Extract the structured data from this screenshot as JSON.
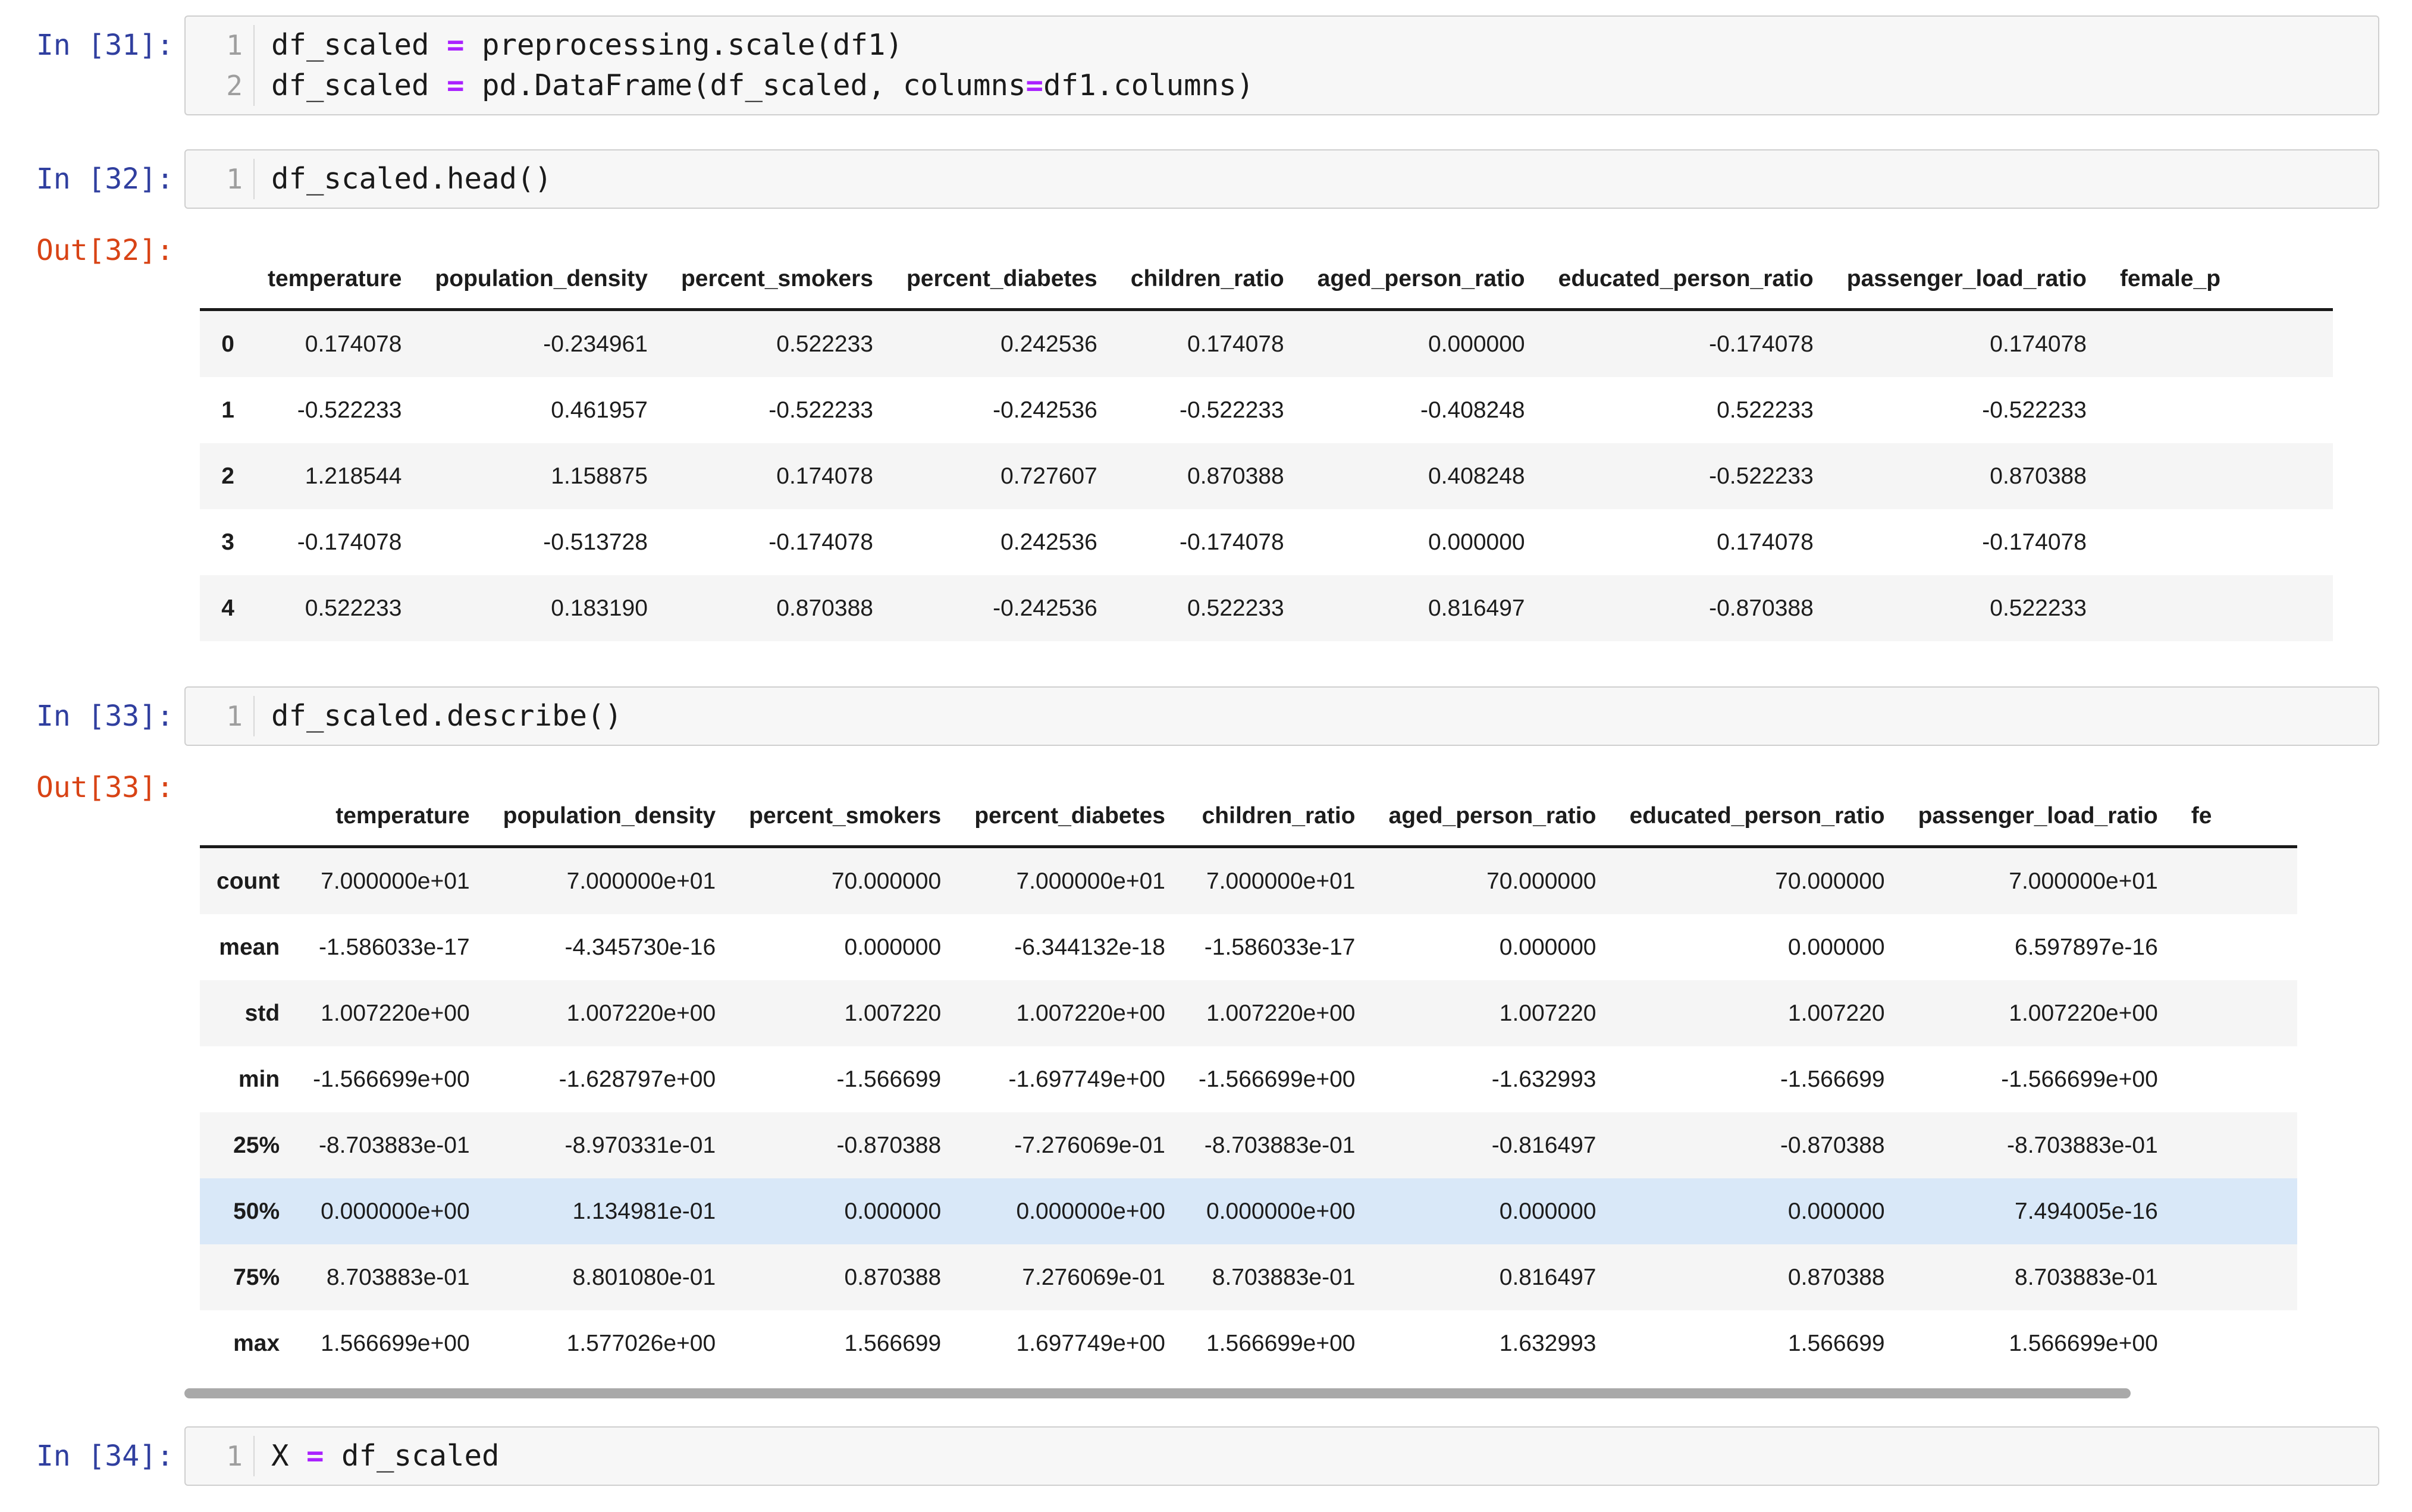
{
  "colors": {
    "input_prompt": "#303F9F",
    "output_prompt": "#D84315",
    "operator": "#AA22FF",
    "cell_background": "#F7F7F7",
    "cell_border": "#CFCFCF",
    "line_number": "#9E9E9E",
    "table_stripe": "#F5F5F5",
    "table_highlight_row": "#D9E8F8",
    "header_rule": "#1A1A1A",
    "scrollbar_thumb": "#A9A9A9",
    "text": "#1C1C1C"
  },
  "cells": [
    {
      "id": "in31",
      "kind": "code",
      "prompt": "In [31]:",
      "lines": [
        {
          "n": "1",
          "parts": [
            "df_scaled ",
            "=",
            " preprocessing.scale(df1)"
          ]
        },
        {
          "n": "2",
          "parts": [
            "df_scaled ",
            "=",
            " pd.DataFrame(df_scaled, columns",
            "=",
            "df1.columns)"
          ]
        }
      ]
    },
    {
      "id": "in32",
      "kind": "code",
      "prompt": "In [32]:",
      "lines": [
        {
          "n": "1",
          "parts": [
            "df_scaled.head()"
          ]
        }
      ]
    },
    {
      "id": "out32",
      "kind": "table",
      "prompt": "Out[32]:",
      "table": {
        "index_header": "",
        "columns": [
          "temperature",
          "population_density",
          "percent_smokers",
          "percent_diabetes",
          "children_ratio",
          "aged_person_ratio",
          "educated_person_ratio",
          "passenger_load_ratio",
          "female_p"
        ],
        "clipped_last_column": true,
        "rows": [
          {
            "label": "0",
            "values": [
              "0.174078",
              "-0.234961",
              "0.522233",
              "0.242536",
              "0.174078",
              "0.000000",
              "-0.174078",
              "0.174078"
            ]
          },
          {
            "label": "1",
            "values": [
              "-0.522233",
              "0.461957",
              "-0.522233",
              "-0.242536",
              "-0.522233",
              "-0.408248",
              "0.522233",
              "-0.522233"
            ]
          },
          {
            "label": "2",
            "values": [
              "1.218544",
              "1.158875",
              "0.174078",
              "0.727607",
              "0.870388",
              "0.408248",
              "-0.522233",
              "0.870388"
            ]
          },
          {
            "label": "3",
            "values": [
              "-0.174078",
              "-0.513728",
              "-0.174078",
              "0.242536",
              "-0.174078",
              "0.000000",
              "0.174078",
              "-0.174078"
            ]
          },
          {
            "label": "4",
            "values": [
              "0.522233",
              "0.183190",
              "0.870388",
              "-0.242536",
              "0.522233",
              "0.816497",
              "-0.870388",
              "0.522233"
            ]
          }
        ]
      }
    },
    {
      "id": "in33",
      "kind": "code",
      "prompt": "In [33]:",
      "lines": [
        {
          "n": "1",
          "parts": [
            "df_scaled.describe()"
          ]
        }
      ]
    },
    {
      "id": "out33",
      "kind": "table",
      "prompt": "Out[33]:",
      "scrollbar": true,
      "table": {
        "index_header": "",
        "columns": [
          "temperature",
          "population_density",
          "percent_smokers",
          "percent_diabetes",
          "children_ratio",
          "aged_person_ratio",
          "educated_person_ratio",
          "passenger_load_ratio",
          "fe"
        ],
        "clipped_last_column": true,
        "rows": [
          {
            "label": "count",
            "values": [
              "7.000000e+01",
              "7.000000e+01",
              "70.000000",
              "7.000000e+01",
              "7.000000e+01",
              "70.000000",
              "70.000000",
              "7.000000e+01"
            ]
          },
          {
            "label": "mean",
            "values": [
              "-1.586033e-17",
              "-4.345730e-16",
              "0.000000",
              "-6.344132e-18",
              "-1.586033e-17",
              "0.000000",
              "0.000000",
              "6.597897e-16"
            ]
          },
          {
            "label": "std",
            "values": [
              "1.007220e+00",
              "1.007220e+00",
              "1.007220",
              "1.007220e+00",
              "1.007220e+00",
              "1.007220",
              "1.007220",
              "1.007220e+00"
            ]
          },
          {
            "label": "min",
            "values": [
              "-1.566699e+00",
              "-1.628797e+00",
              "-1.566699",
              "-1.697749e+00",
              "-1.566699e+00",
              "-1.632993",
              "-1.566699",
              "-1.566699e+00"
            ]
          },
          {
            "label": "25%",
            "values": [
              "-8.703883e-01",
              "-8.970331e-01",
              "-0.870388",
              "-7.276069e-01",
              "-8.703883e-01",
              "-0.816497",
              "-0.870388",
              "-8.703883e-01"
            ]
          },
          {
            "label": "50%",
            "highlight": true,
            "values": [
              "0.000000e+00",
              "1.134981e-01",
              "0.000000",
              "0.000000e+00",
              "0.000000e+00",
              "0.000000",
              "0.000000",
              "7.494005e-16"
            ]
          },
          {
            "label": "75%",
            "values": [
              "8.703883e-01",
              "8.801080e-01",
              "0.870388",
              "7.276069e-01",
              "8.703883e-01",
              "0.816497",
              "0.870388",
              "8.703883e-01"
            ]
          },
          {
            "label": "max",
            "values": [
              "1.566699e+00",
              "1.577026e+00",
              "1.566699",
              "1.697749e+00",
              "1.566699e+00",
              "1.632993",
              "1.566699",
              "1.566699e+00"
            ]
          }
        ]
      }
    },
    {
      "id": "in34",
      "kind": "code",
      "prompt": "In [34]:",
      "lines": [
        {
          "n": "1",
          "parts": [
            "X ",
            "=",
            " df_scaled"
          ]
        }
      ]
    }
  ]
}
